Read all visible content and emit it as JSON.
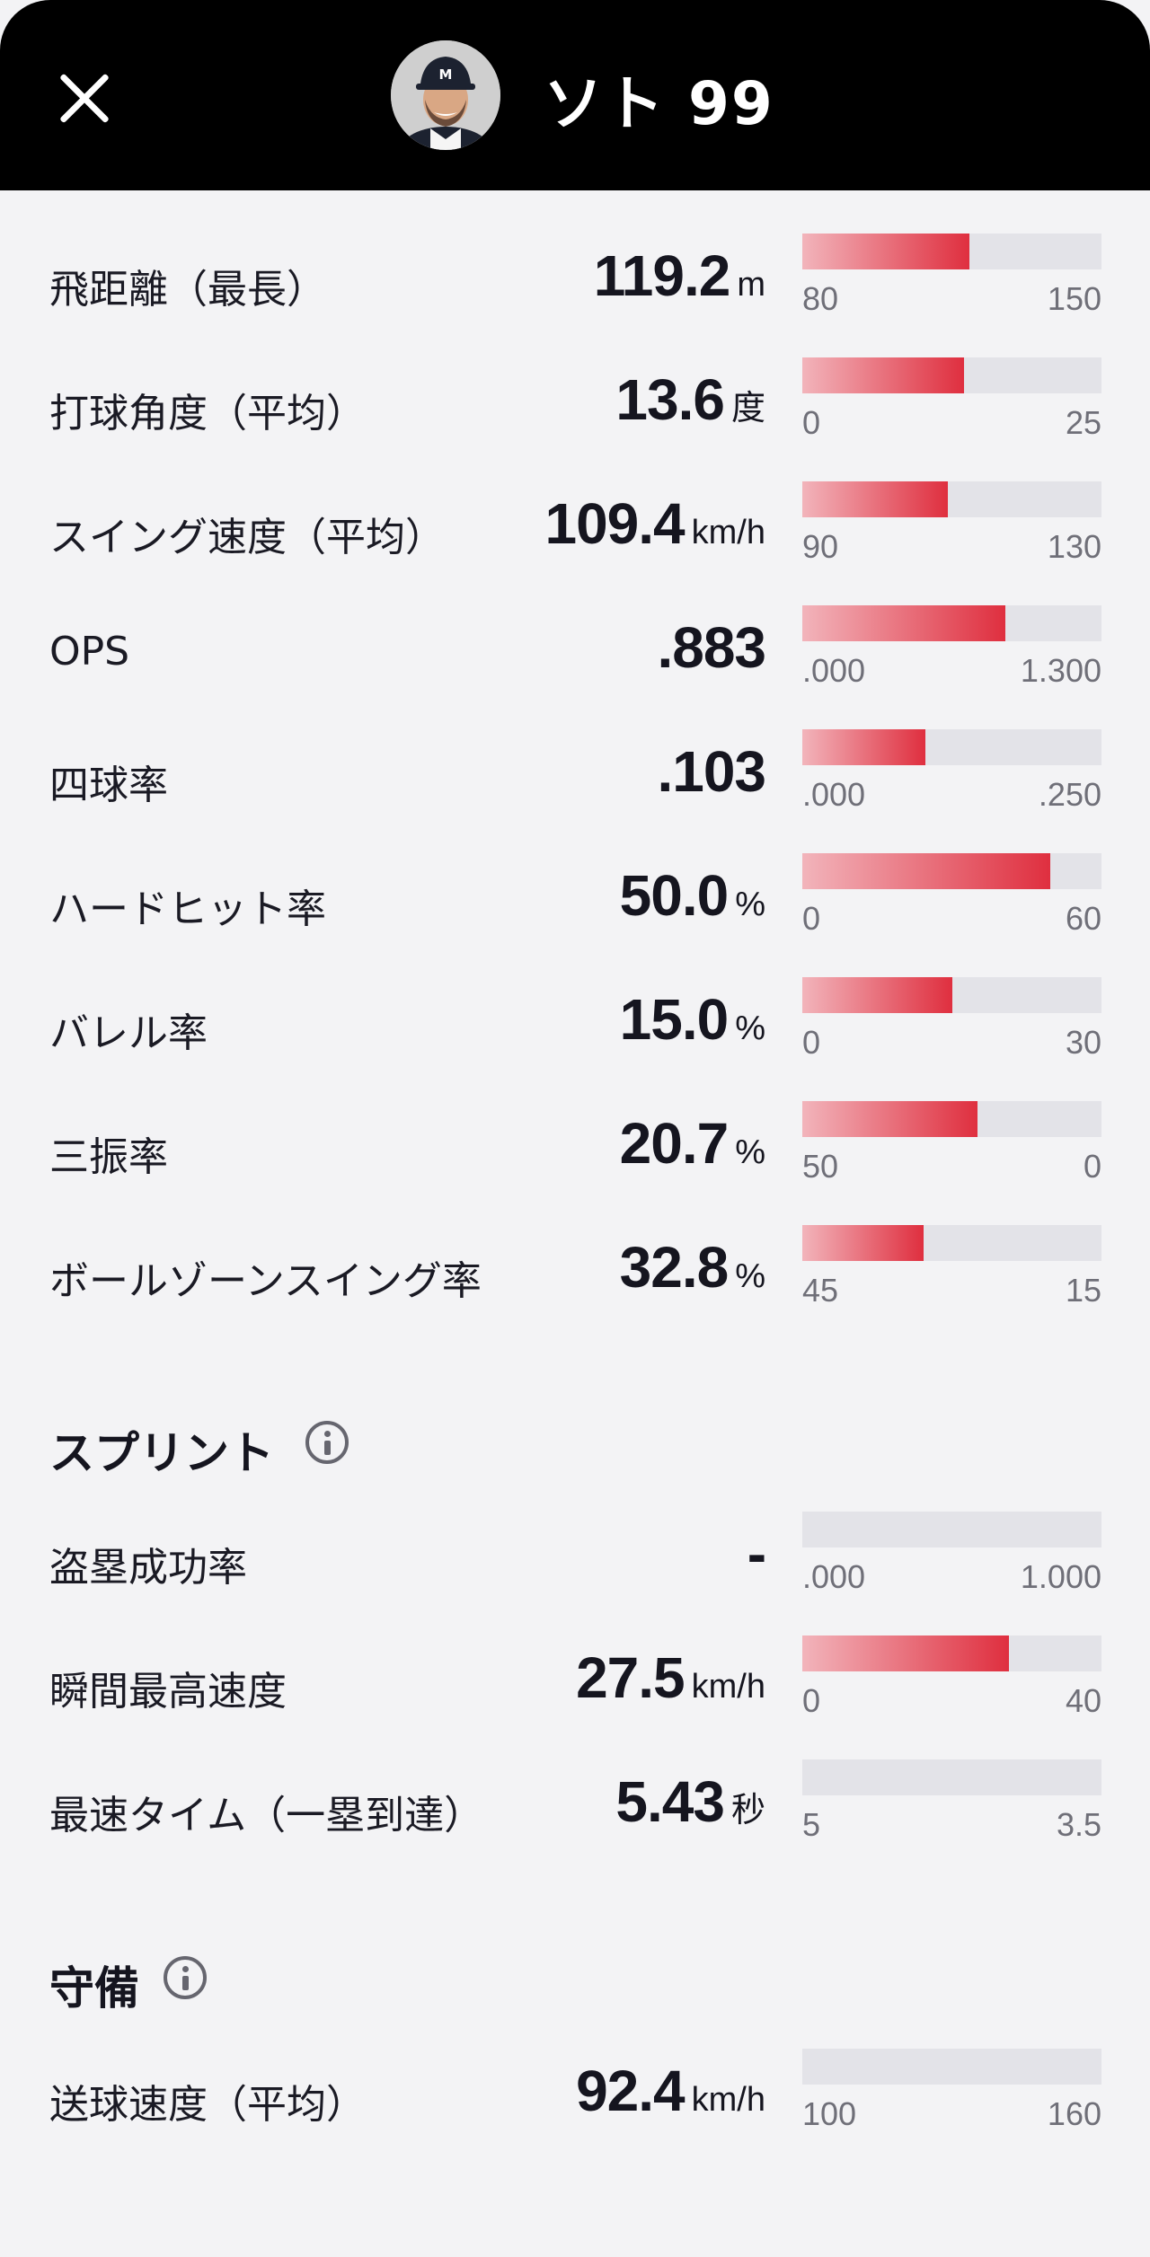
{
  "header": {
    "close_icon": "close-icon",
    "avatar": "player-avatar",
    "player_name": "ソト 99"
  },
  "batting": [
    {
      "label": "飛距離（最長）",
      "value": "119.2",
      "unit": "m",
      "min": "80",
      "max": "150",
      "fill": 0.56
    },
    {
      "label": "打球角度（平均）",
      "value": "13.6",
      "unit": "度",
      "min": "0",
      "max": "25",
      "fill": 0.54
    },
    {
      "label": "スイング速度（平均）",
      "value": "109.4",
      "unit": "km/h",
      "min": "90",
      "max": "130",
      "fill": 0.485
    },
    {
      "label": "OPS",
      "value": ".883",
      "unit": "",
      "min": ".000",
      "max": "1.300",
      "fill": 0.68
    },
    {
      "label": "四球率",
      "value": ".103",
      "unit": "",
      "min": ".000",
      "max": ".250",
      "fill": 0.41
    },
    {
      "label": "ハードヒット率",
      "value": "50.0",
      "unit": "%",
      "min": "0",
      "max": "60",
      "fill": 0.83
    },
    {
      "label": "バレル率",
      "value": "15.0",
      "unit": "%",
      "min": "0",
      "max": "30",
      "fill": 0.5
    },
    {
      "label": "三振率",
      "value": "20.7",
      "unit": "%",
      "min": "50",
      "max": "0",
      "fill": 0.585
    },
    {
      "label": "ボールゾーンスイング率",
      "value": "32.8",
      "unit": "%",
      "min": "45",
      "max": "15",
      "fill": 0.405
    }
  ],
  "sprint": {
    "title": "スプリント",
    "items": [
      {
        "label": "盗塁成功率",
        "value": "-",
        "unit": "",
        "min": ".000",
        "max": "1.000",
        "fill": 0
      },
      {
        "label": "瞬間最高速度",
        "value": "27.5",
        "unit": "km/h",
        "min": "0",
        "max": "40",
        "fill": 0.69
      },
      {
        "label": "最速タイム（一塁到達）",
        "value": "5.43",
        "unit": "秒",
        "min": "5",
        "max": "3.5",
        "fill": 0
      }
    ]
  },
  "defense": {
    "title": "守備",
    "items": [
      {
        "label": "送球速度（平均）",
        "value": "92.4",
        "unit": "km/h",
        "min": "100",
        "max": "160",
        "fill": 0
      }
    ]
  },
  "colors": {
    "bar_start": "#f2b4bb",
    "bar_end": "#df2f3f",
    "track": "#e3e3e8",
    "header_bg": "#000000",
    "page_bg": "#f3f3f5"
  }
}
